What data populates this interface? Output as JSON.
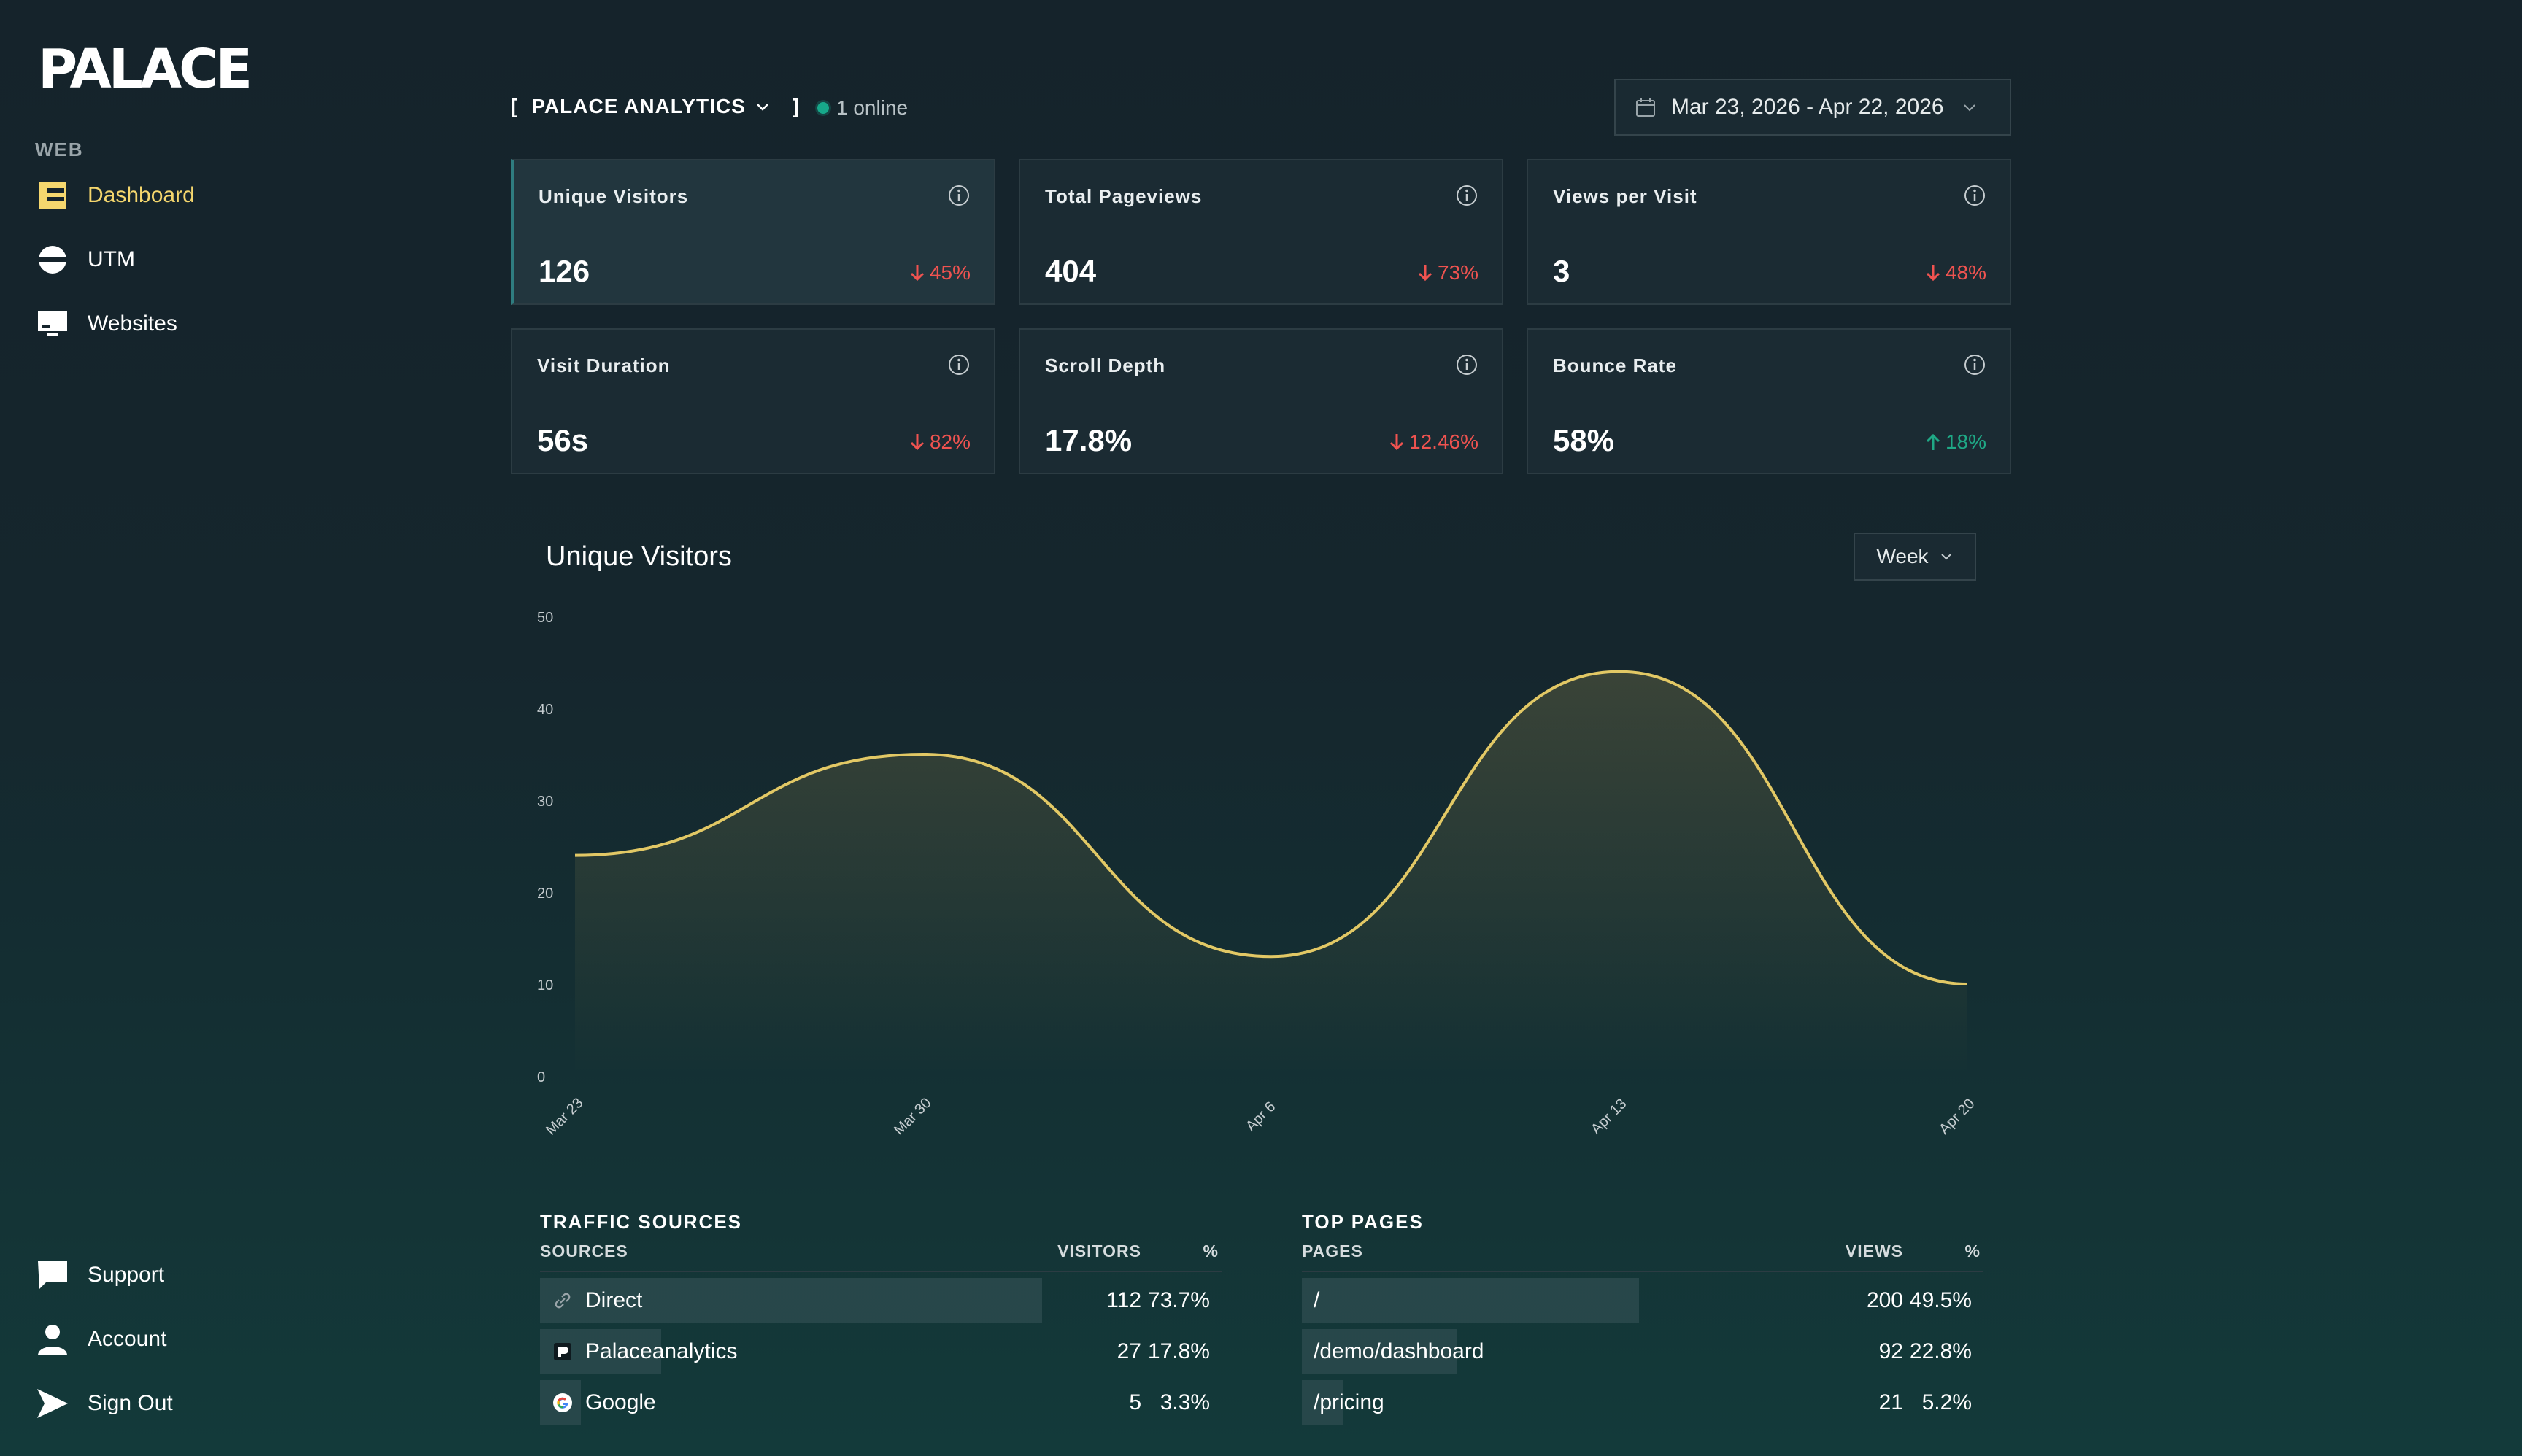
{
  "brand": {
    "logo_text": "PALACE"
  },
  "sidebar": {
    "section": "WEB",
    "items": [
      {
        "label": "Dashboard",
        "icon": "layout-icon",
        "active": true
      },
      {
        "label": "UTM",
        "icon": "utm-icon"
      },
      {
        "label": "Websites",
        "icon": "monitor-icon"
      }
    ],
    "bottom": [
      {
        "label": "Support",
        "icon": "chat-icon"
      },
      {
        "label": "Account",
        "icon": "user-icon"
      },
      {
        "label": "Sign Out",
        "icon": "sign-out-icon"
      }
    ]
  },
  "header": {
    "site": "PALACE ANALYTICS",
    "online": "1 online",
    "date_range": "Mar 23, 2026 - Apr 22, 2026"
  },
  "kpis": [
    {
      "title": "Unique Visitors",
      "value": "126",
      "change": "45%",
      "dir": "down"
    },
    {
      "title": "Total Pageviews",
      "value": "404",
      "change": "73%",
      "dir": "down"
    },
    {
      "title": "Views per Visit",
      "value": "3",
      "change": "48%",
      "dir": "down"
    },
    {
      "title": "Visit Duration",
      "value": "56s",
      "change": "82%",
      "dir": "down"
    },
    {
      "title": "Scroll Depth",
      "value": "17.8%",
      "change": "12.46%",
      "dir": "down"
    },
    {
      "title": "Bounce Rate",
      "value": "58%",
      "change": "18%",
      "dir": "up"
    }
  ],
  "chart": {
    "title": "Unique Visitors",
    "interval": "Week"
  },
  "chart_data": {
    "type": "area",
    "title": "Unique Visitors",
    "x": [
      "Mar 23",
      "Mar 30",
      "Apr 6",
      "Apr 13",
      "Apr 20"
    ],
    "values": [
      24,
      35,
      13,
      44,
      10
    ],
    "yticks": [
      0,
      10,
      20,
      30,
      40,
      50
    ],
    "ylim": [
      0,
      50
    ],
    "color": "#e2c865"
  },
  "traffic_sources": {
    "title": "TRAFFIC SOURCES",
    "headers": [
      "SOURCES",
      "VISITORS",
      "%"
    ],
    "rows": [
      {
        "name": "Direct",
        "icon": "link-icon",
        "value": "112",
        "pct": "73.7%",
        "share": 0.737
      },
      {
        "name": "Palaceanalytics",
        "icon": "palace-icon",
        "value": "27",
        "pct": "17.8%",
        "share": 0.178
      },
      {
        "name": "Google",
        "icon": "google-icon",
        "value": "5",
        "pct": "3.3%",
        "share": 0.033
      }
    ]
  },
  "top_pages": {
    "title": "TOP PAGES",
    "headers": [
      "PAGES",
      "VIEWS",
      "%"
    ],
    "rows": [
      {
        "name": "/",
        "value": "200",
        "pct": "49.5%",
        "share": 0.495
      },
      {
        "name": "/demo/dashboard",
        "value": "92",
        "pct": "22.8%",
        "share": 0.228
      },
      {
        "name": "/pricing",
        "value": "21",
        "pct": "5.2%",
        "share": 0.052
      }
    ]
  }
}
